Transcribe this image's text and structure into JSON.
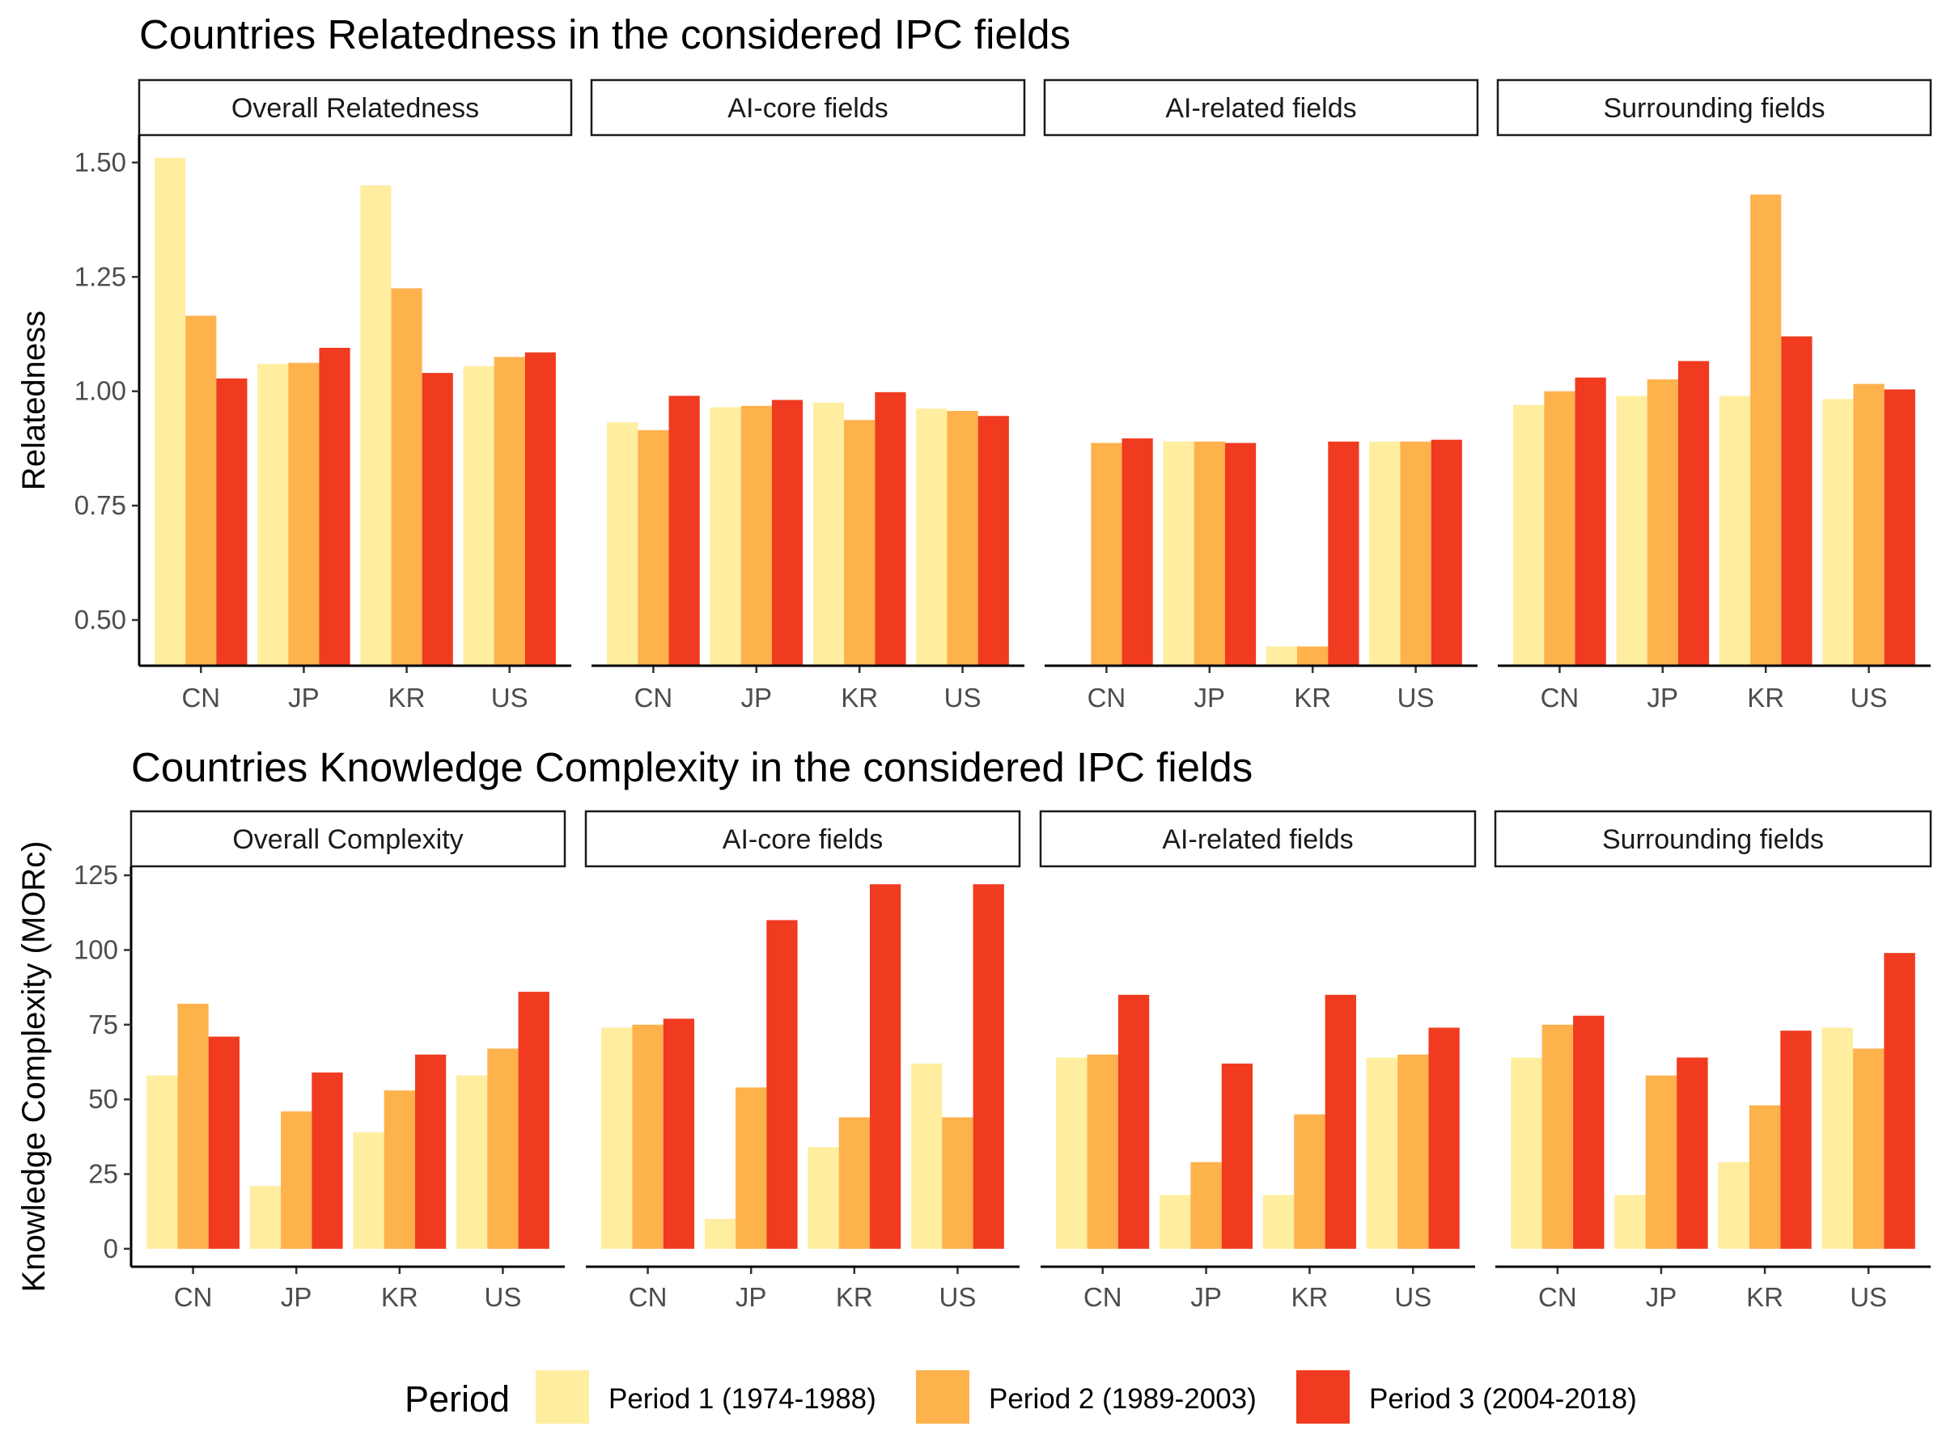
{
  "colors": {
    "period1": "#FFEDA0",
    "period2": "#FEB24C",
    "period3": "#F03B20"
  },
  "legend": {
    "title": "Period",
    "entries": [
      "Period 1 (1974-1988)",
      "Period 2 (1989-2003)",
      "Period 3 (2004-2018)"
    ]
  },
  "chart_data": [
    {
      "type": "bar",
      "title": "Countries Relatedness in the considered IPC fields",
      "xlabel": "",
      "ylabel": "Relatedness",
      "ylim": [
        0.4,
        1.56
      ],
      "yticks": [
        "0.50",
        "0.75",
        "1.00",
        "1.25",
        "1.50"
      ],
      "categories": [
        "CN",
        "JP",
        "KR",
        "US"
      ],
      "grid": false,
      "legend_position": "bottom",
      "panels": [
        {
          "name": "Overall Relatedness",
          "series": [
            {
              "name": "Period 1 (1974-1988)",
              "values": [
                1.51,
                1.06,
                1.45,
                1.055
              ]
            },
            {
              "name": "Period 2 (1989-2003)",
              "values": [
                1.165,
                1.062,
                1.225,
                1.075
              ]
            },
            {
              "name": "Period 3 (2004-2018)",
              "values": [
                1.028,
                1.095,
                1.04,
                1.085
              ]
            }
          ]
        },
        {
          "name": "AI-core fields",
          "series": [
            {
              "name": "Period 1 (1974-1988)",
              "values": [
                0.932,
                0.965,
                0.975,
                0.962
              ]
            },
            {
              "name": "Period 2 (1989-2003)",
              "values": [
                0.915,
                0.968,
                0.937,
                0.957
              ]
            },
            {
              "name": "Period 3 (2004-2018)",
              "values": [
                0.99,
                0.981,
                0.998,
                0.946
              ]
            }
          ]
        },
        {
          "name": "AI-related fields",
          "series": [
            {
              "name": "Period 1 (1974-1988)",
              "values": [
                null,
                0.89,
                0.442,
                0.89
              ]
            },
            {
              "name": "Period 2 (1989-2003)",
              "values": [
                0.887,
                0.89,
                0.442,
                0.89
              ]
            },
            {
              "name": "Period 3 (2004-2018)",
              "values": [
                0.897,
                0.887,
                0.89,
                0.894
              ]
            }
          ]
        },
        {
          "name": "Surrounding fields",
          "series": [
            {
              "name": "Period 1 (1974-1988)",
              "values": [
                0.97,
                0.99,
                0.99,
                0.983
              ]
            },
            {
              "name": "Period 2 (1989-2003)",
              "values": [
                1.0,
                1.026,
                1.43,
                1.016
              ]
            },
            {
              "name": "Period 3 (2004-2018)",
              "values": [
                1.03,
                1.066,
                1.12,
                1.004
              ]
            }
          ]
        }
      ]
    },
    {
      "type": "bar",
      "title": "Countries Knowledge Complexity in the considered IPC fields",
      "xlabel": "",
      "ylabel": "Knowledge Complexity (MORc)",
      "ylim": [
        -6,
        128
      ],
      "yticks": [
        "0",
        "25",
        "50",
        "75",
        "100",
        "125"
      ],
      "categories": [
        "CN",
        "JP",
        "KR",
        "US"
      ],
      "grid": false,
      "legend_position": "bottom",
      "panels": [
        {
          "name": "Overall Complexity",
          "series": [
            {
              "name": "Period 1 (1974-1988)",
              "values": [
                58,
                21,
                39,
                58
              ]
            },
            {
              "name": "Period 2 (1989-2003)",
              "values": [
                82,
                46,
                53,
                67
              ]
            },
            {
              "name": "Period 3 (2004-2018)",
              "values": [
                71,
                59,
                65,
                86
              ]
            }
          ]
        },
        {
          "name": "AI-core fields",
          "series": [
            {
              "name": "Period 1 (1974-1988)",
              "values": [
                74,
                10,
                34,
                62
              ]
            },
            {
              "name": "Period 2 (1989-2003)",
              "values": [
                75,
                54,
                44,
                44
              ]
            },
            {
              "name": "Period 3 (2004-2018)",
              "values": [
                77,
                110,
                122,
                122
              ]
            }
          ]
        },
        {
          "name": "AI-related fields",
          "series": [
            {
              "name": "Period 1 (1974-1988)",
              "values": [
                64,
                18,
                18,
                64
              ]
            },
            {
              "name": "Period 2 (1989-2003)",
              "values": [
                65,
                29,
                45,
                65
              ]
            },
            {
              "name": "Period 3 (2004-2018)",
              "values": [
                85,
                62,
                85,
                74
              ]
            }
          ]
        },
        {
          "name": "Surrounding fields",
          "series": [
            {
              "name": "Period 1 (1974-1988)",
              "values": [
                64,
                18,
                29,
                74
              ]
            },
            {
              "name": "Period 2 (1989-2003)",
              "values": [
                75,
                58,
                48,
                67
              ]
            },
            {
              "name": "Period 3 (2004-2018)",
              "values": [
                78,
                64,
                73,
                99
              ]
            }
          ]
        }
      ]
    }
  ]
}
